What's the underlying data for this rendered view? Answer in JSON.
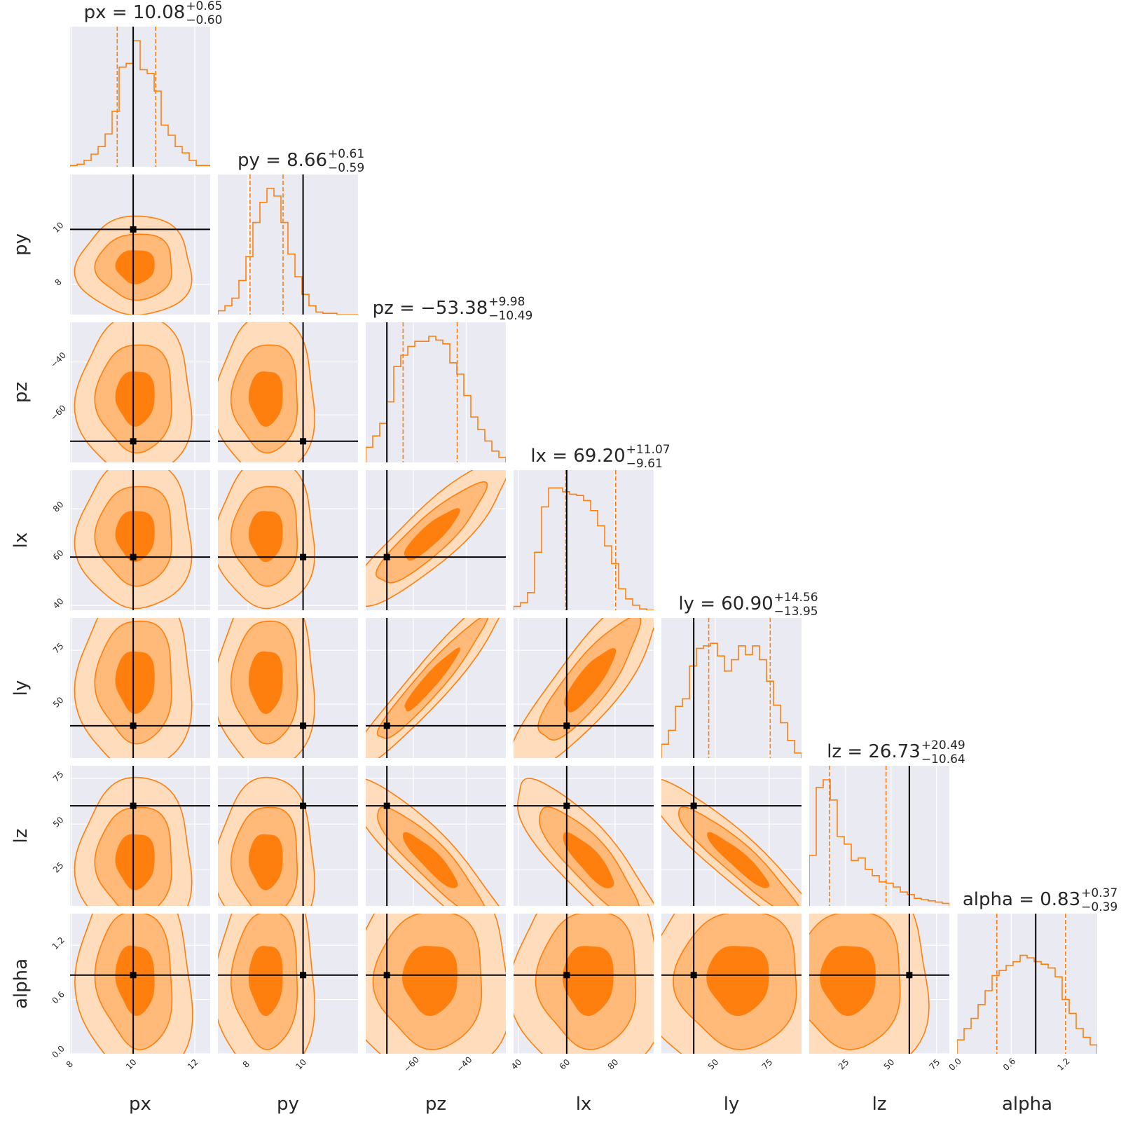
{
  "chart_data": {
    "type": "corner",
    "parameters": [
      "px",
      "py",
      "pz",
      "lx",
      "ly",
      "lz",
      "alpha"
    ],
    "axis_labels": [
      "px",
      "py",
      "pz",
      "lx",
      "ly",
      "lz",
      "alpha"
    ],
    "titles": [
      {
        "param": "px",
        "lead": "px = 10.08",
        "plus": "+0.65",
        "minus": "−0.60"
      },
      {
        "param": "py",
        "lead": "py = 8.66",
        "plus": "+0.61",
        "minus": "−0.59"
      },
      {
        "param": "pz",
        "lead": "pz = −53.38",
        "plus": "+9.98",
        "minus": "−10.49"
      },
      {
        "param": "lx",
        "lead": "lx = 69.20",
        "plus": "+11.07",
        "minus": "−9.61"
      },
      {
        "param": "ly",
        "lead": "ly = 60.90",
        "plus": "+14.56",
        "minus": "−13.95"
      },
      {
        "param": "lz",
        "lead": "lz = 26.73",
        "plus": "+20.49",
        "minus": "−10.64"
      },
      {
        "param": "alpha",
        "lead": "alpha = 0.83",
        "plus": "+0.37",
        "minus": "−0.39"
      }
    ],
    "ranges": [
      [
        7.95,
        12.5
      ],
      [
        6.9,
        12.0
      ],
      [
        -78,
        -25
      ],
      [
        38,
        96
      ],
      [
        25,
        90
      ],
      [
        5,
        82
      ],
      [
        0.0,
        1.55
      ]
    ],
    "ticks": [
      {
        "values": [
          8,
          10,
          12
        ],
        "labels": [
          "8",
          "10",
          "12"
        ]
      },
      {
        "values": [
          8,
          10
        ],
        "labels": [
          "8",
          "10"
        ]
      },
      {
        "values": [
          -60,
          -40
        ],
        "labels": [
          "−60",
          "−40"
        ]
      },
      {
        "values": [
          40,
          60,
          80
        ],
        "labels": [
          "40",
          "60",
          "80"
        ]
      },
      {
        "values": [
          50,
          75
        ],
        "labels": [
          "50",
          "75"
        ]
      },
      {
        "values": [
          25,
          50,
          75
        ],
        "labels": [
          "25",
          "50",
          "75"
        ]
      },
      {
        "values": [
          0.0,
          0.6,
          1.2
        ],
        "labels": [
          "0.0",
          "0.6",
          "1.2"
        ]
      }
    ],
    "truths": [
      10,
      10,
      -70,
      60,
      40,
      60,
      0.87
    ],
    "medians": [
      10.08,
      8.66,
      -53.38,
      69.2,
      60.9,
      26.73,
      0.83
    ],
    "quantiles_16_84": [
      [
        9.48,
        10.73
      ],
      [
        8.07,
        9.27
      ],
      [
        -63.87,
        -43.4
      ],
      [
        59.59,
        80.27
      ],
      [
        46.95,
        75.46
      ],
      [
        16.09,
        47.22
      ],
      [
        0.44,
        1.2
      ]
    ],
    "histograms": [
      [
        0.01,
        0.02,
        0.05,
        0.1,
        0.16,
        0.26,
        0.44,
        0.79,
        0.82,
        1.0,
        0.77,
        0.74,
        0.6,
        0.33,
        0.25,
        0.16,
        0.11,
        0.05,
        0.01,
        0.01
      ],
      [
        0.03,
        0.07,
        0.13,
        0.27,
        0.46,
        0.73,
        0.89,
        1.0,
        0.94,
        0.73,
        0.48,
        0.3,
        0.16,
        0.07,
        0.02,
        0.01,
        0.01,
        0.0,
        0.0,
        0.0
      ],
      [
        0.12,
        0.21,
        0.31,
        0.48,
        0.76,
        0.85,
        0.92,
        0.96,
        0.96,
        1.0,
        0.97,
        0.94,
        0.79,
        0.7,
        0.53,
        0.36,
        0.26,
        0.17,
        0.09,
        0.04
      ],
      [
        0.03,
        0.06,
        0.14,
        0.46,
        0.82,
        0.97,
        0.97,
        0.94,
        0.92,
        0.91,
        0.87,
        0.79,
        0.67,
        0.51,
        0.37,
        0.17,
        0.09,
        0.04,
        0.01,
        0.0
      ],
      [
        0.11,
        0.22,
        0.41,
        0.47,
        0.73,
        0.87,
        0.89,
        0.91,
        0.81,
        0.69,
        0.78,
        0.89,
        0.82,
        0.89,
        0.78,
        0.61,
        0.42,
        0.28,
        0.14,
        0.04
      ],
      [
        0.4,
        0.94,
        1.0,
        0.84,
        0.55,
        0.49,
        0.36,
        0.38,
        0.29,
        0.24,
        0.19,
        0.18,
        0.15,
        0.11,
        0.09,
        0.06,
        0.05,
        0.04,
        0.03,
        0.02
      ],
      [
        0.11,
        0.2,
        0.28,
        0.39,
        0.5,
        0.62,
        0.66,
        0.7,
        0.73,
        0.78,
        0.76,
        0.73,
        0.71,
        0.68,
        0.61,
        0.43,
        0.32,
        0.2,
        0.13,
        0.07
      ]
    ],
    "pair_contours": [
      {
        "x": "px",
        "y": "py",
        "center": [
          10.08,
          8.66
        ],
        "sx": 0.62,
        "sy": 0.6,
        "rho": 0.0
      },
      {
        "x": "px",
        "y": "pz",
        "center": [
          10.08,
          -53.38
        ],
        "sx": 0.62,
        "sy": 10.2,
        "rho": 0.0
      },
      {
        "x": "py",
        "y": "pz",
        "center": [
          8.66,
          -53.38
        ],
        "sx": 0.6,
        "sy": 10.2,
        "rho": 0.0
      },
      {
        "x": "px",
        "y": "lx",
        "center": [
          10.08,
          69.2
        ],
        "sx": 0.62,
        "sy": 10.3,
        "rho": 0.0
      },
      {
        "x": "py",
        "y": "lx",
        "center": [
          8.66,
          69.2
        ],
        "sx": 0.6,
        "sy": 10.3,
        "rho": 0.0
      },
      {
        "x": "pz",
        "y": "lx",
        "center": [
          -53.38,
          69.2
        ],
        "sx": 10.2,
        "sy": 10.3,
        "rho": 0.88
      },
      {
        "x": "px",
        "y": "ly",
        "center": [
          10.08,
          60.9
        ],
        "sx": 0.62,
        "sy": 14.2,
        "rho": 0.0
      },
      {
        "x": "py",
        "y": "ly",
        "center": [
          8.66,
          60.9
        ],
        "sx": 0.6,
        "sy": 14.2,
        "rho": 0.0
      },
      {
        "x": "pz",
        "y": "ly",
        "center": [
          -53.38,
          60.9
        ],
        "sx": 10.2,
        "sy": 14.2,
        "rho": 0.95
      },
      {
        "x": "lx",
        "y": "ly",
        "center": [
          69.2,
          60.9
        ],
        "sx": 10.3,
        "sy": 14.2,
        "rho": 0.85
      },
      {
        "x": "px",
        "y": "lz",
        "center": [
          10.08,
          30.0
        ],
        "sx": 0.62,
        "sy": 15.0,
        "rho": 0.0
      },
      {
        "x": "py",
        "y": "lz",
        "center": [
          8.66,
          30.0
        ],
        "sx": 0.6,
        "sy": 15.0,
        "rho": 0.0
      },
      {
        "x": "pz",
        "y": "lz",
        "center": [
          -53.38,
          30.0
        ],
        "sx": 10.2,
        "sy": 15.0,
        "rho": -0.9
      },
      {
        "x": "lx",
        "y": "lz",
        "center": [
          69.2,
          30.0
        ],
        "sx": 10.3,
        "sy": 15.0,
        "rho": -0.85
      },
      {
        "x": "ly",
        "y": "lz",
        "center": [
          60.9,
          30.0
        ],
        "sx": 14.2,
        "sy": 15.0,
        "rho": -0.93
      },
      {
        "x": "px",
        "y": "alpha",
        "center": [
          10.08,
          0.83
        ],
        "sx": 0.62,
        "sy": 0.38,
        "rho": -0.1
      },
      {
        "x": "py",
        "y": "alpha",
        "center": [
          8.66,
          0.83
        ],
        "sx": 0.6,
        "sy": 0.38,
        "rho": 0.0
      },
      {
        "x": "pz",
        "y": "alpha",
        "center": [
          -53.38,
          0.83
        ],
        "sx": 10.2,
        "sy": 0.38,
        "rho": 0.0
      },
      {
        "x": "lx",
        "y": "alpha",
        "center": [
          69.2,
          0.83
        ],
        "sx": 10.3,
        "sy": 0.38,
        "rho": 0.0
      },
      {
        "x": "ly",
        "y": "alpha",
        "center": [
          60.9,
          0.83
        ],
        "sx": 14.2,
        "sy": 0.38,
        "rho": 0.0
      },
      {
        "x": "lz",
        "y": "alpha",
        "center": [
          26.73,
          0.83
        ],
        "sx": 15.0,
        "sy": 0.38,
        "rho": 0.0
      }
    ],
    "contour_levels": [
      3.0,
      2.0,
      1.0
    ],
    "grid": true
  },
  "colors": {
    "panel_bg": "#eaeaf2",
    "grid": "#ffffff",
    "orange": "#ff7f0e",
    "fill_outer": "#ffdcbc",
    "fill_mid": "#ffb978",
    "fill_inner": "#ff7f0e",
    "truth": "#000000",
    "text": "#262626"
  }
}
